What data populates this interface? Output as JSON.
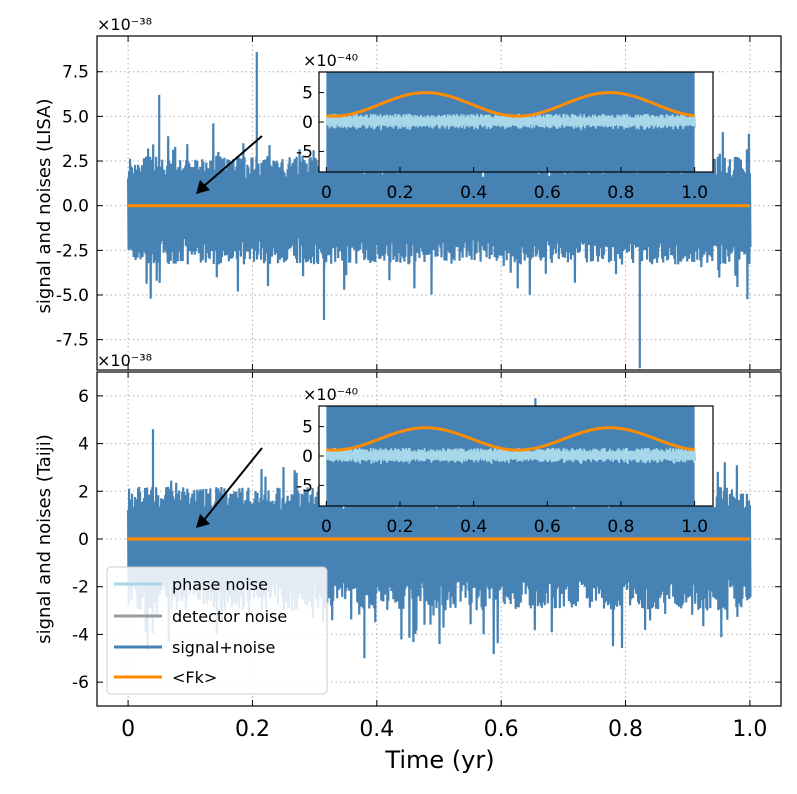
{
  "figure": {
    "xlabel": "Time (yr)",
    "legend": {
      "placement": "lower-left of bottom panel",
      "entries": [
        {
          "label": "phase noise",
          "color": "#a6d8ea"
        },
        {
          "label": "detector noise",
          "color": "#999999"
        },
        {
          "label": "signal+noise",
          "color": "#4682b4"
        },
        {
          "label": "<Fk>",
          "color": "#ff8c00"
        }
      ]
    },
    "inset_arrow_color": "#000000"
  },
  "chart_data": [
    {
      "type": "line",
      "panel": "top",
      "ylabel": "signal and noises (LISA)",
      "offset_text": "×10⁻³⁸",
      "xlim": [
        -0.05,
        1.05
      ],
      "ylim": [
        -9.2,
        9.5
      ],
      "xticks": [
        "0",
        "0.2",
        "0.4",
        "0.6",
        "0.8",
        "1.0"
      ],
      "yticks": [
        "-7.5",
        "-5.0",
        "-2.5",
        "0.0",
        "2.5",
        "5.0",
        "7.5"
      ],
      "grid": true,
      "series": [
        {
          "name": "signal+noise",
          "color": "#4682b4",
          "x_range": [
            0,
            1
          ],
          "typical_range": [
            -3.3,
            2.8
          ],
          "peaks": [
            [
              0.207,
              8.6
            ],
            [
              0.823,
              -9.1
            ],
            [
              0.315,
              -6.4
            ],
            [
              0.05,
              6.2
            ]
          ]
        },
        {
          "name": "<Fk>",
          "color": "#ff8c00",
          "x": [
            0,
            0.25,
            0.5,
            0.75,
            1.0
          ],
          "y": [
            0,
            0,
            0,
            0,
            0
          ]
        }
      ],
      "inset": {
        "offset_text": "×10⁻⁴⁰",
        "xlim": [
          -0.02,
          1.05
        ],
        "ylim": [
          -8.5,
          8.5
        ],
        "xticks": [
          "0",
          "0.2",
          "0.4",
          "0.6",
          "0.8",
          "1.0"
        ],
        "yticks": [
          "5",
          "0",
          "-5"
        ],
        "phase_noise_amplitude": 1.4,
        "signal_amplitude_range": [
          1.0,
          5.0
        ],
        "signal_peaks_x": [
          0.27,
          0.73
        ]
      }
    },
    {
      "type": "line",
      "panel": "bottom",
      "ylabel": "signal and noises (Taiji)",
      "offset_text": "×10⁻³⁸",
      "xlim": [
        -0.05,
        1.05
      ],
      "ylim": [
        -7.0,
        7.0
      ],
      "xticks": [
        "0",
        "0.2",
        "0.4",
        "0.6",
        "0.8",
        "1.0"
      ],
      "yticks": [
        "-6",
        "-4",
        "-2",
        "0",
        "2",
        "4",
        "6"
      ],
      "grid": true,
      "series": [
        {
          "name": "signal+noise",
          "color": "#4682b4",
          "x_range": [
            0,
            1
          ],
          "typical_range": [
            -3.0,
            2.2
          ],
          "peaks": [
            [
              0.655,
              5.9
            ],
            [
              0.38,
              -5.0
            ],
            [
              0.04,
              4.6
            ]
          ]
        },
        {
          "name": "<Fk>",
          "color": "#ff8c00",
          "x": [
            0,
            0.25,
            0.5,
            0.75,
            1.0
          ],
          "y": [
            0,
            0,
            0,
            0,
            0
          ]
        }
      ],
      "inset": {
        "offset_text": "×10⁻⁴⁰",
        "xlim": [
          -0.02,
          1.05
        ],
        "ylim": [
          -8.5,
          8.5
        ],
        "xticks": [
          "0",
          "0.2",
          "0.4",
          "0.6",
          "0.8",
          "1.0"
        ],
        "yticks": [
          "5",
          "0",
          "-5"
        ],
        "phase_noise_amplitude": 1.4,
        "signal_amplitude_range": [
          1.0,
          4.8
        ],
        "signal_peaks_x": [
          0.27,
          0.73
        ]
      }
    }
  ]
}
